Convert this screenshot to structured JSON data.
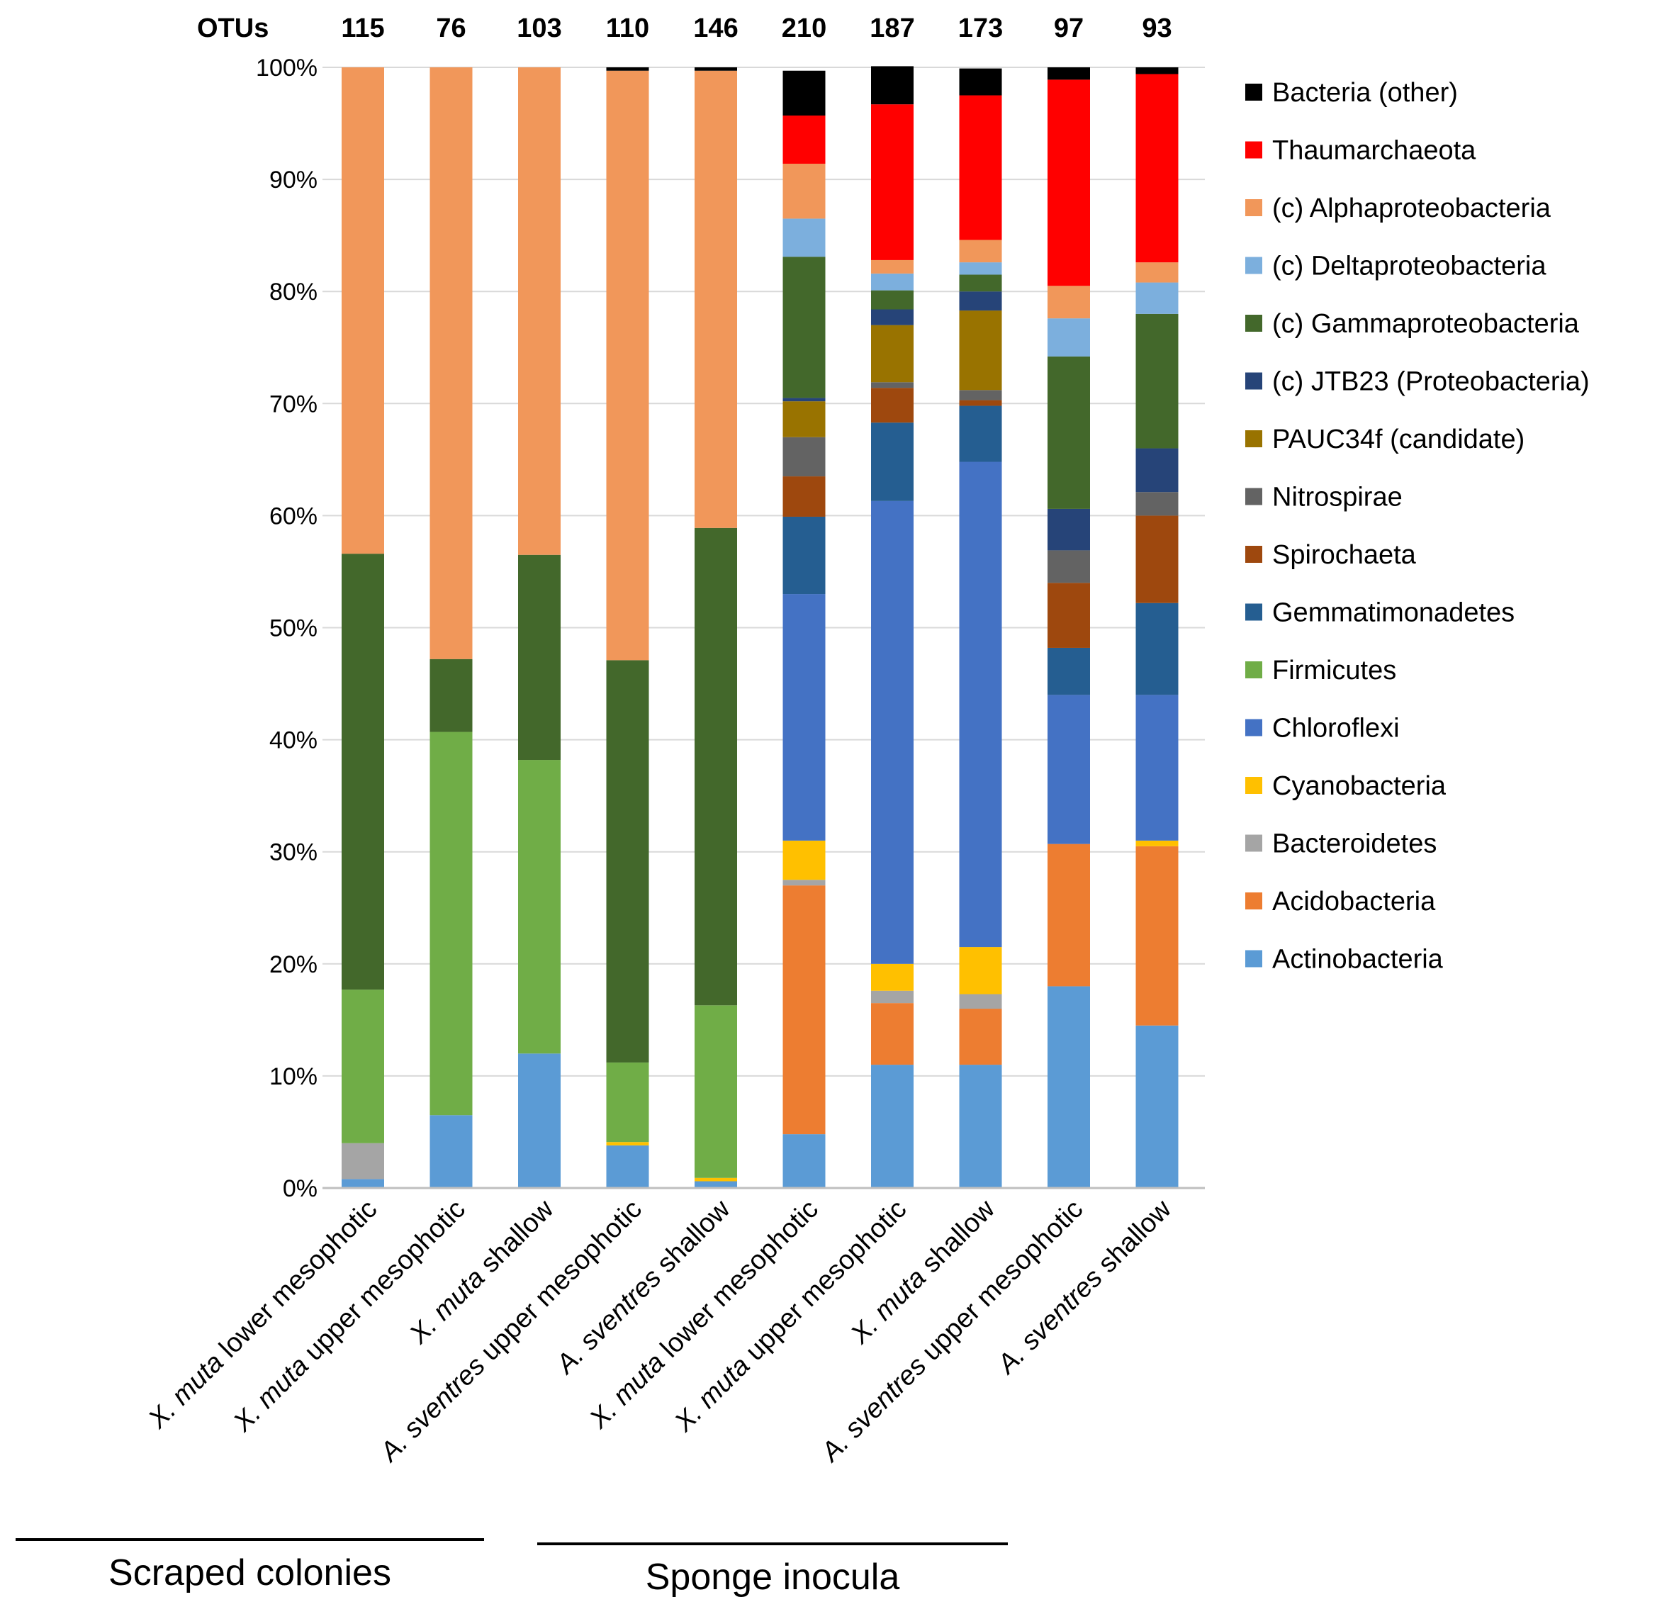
{
  "chart_data": {
    "type": "bar",
    "stacked": true,
    "title": "",
    "xlabel": "",
    "ylabel": "",
    "ylim": [
      0,
      100
    ],
    "y_ticks": [
      "0%",
      "10%",
      "20%",
      "30%",
      "40%",
      "50%",
      "60%",
      "70%",
      "80%",
      "90%",
      "100%"
    ],
    "otus_label": "OTUs",
    "otus": [
      "115",
      "76",
      "103",
      "110",
      "146",
      "210",
      "187",
      "173",
      "97",
      "93"
    ],
    "categories": [
      {
        "species": "X. muta",
        "rest": " lower mesophotic"
      },
      {
        "species": "X. muta",
        "rest": " upper mesophotic"
      },
      {
        "species": "X. muta",
        "rest": " shallow"
      },
      {
        "species": "A. sventres",
        "rest": " upper mesophotic"
      },
      {
        "species": "A. sventres",
        "rest": " shallow"
      },
      {
        "species": "X. muta",
        "rest": " lower mesophotic"
      },
      {
        "species": "X. muta",
        "rest": " upper mesophotic"
      },
      {
        "species": "X. muta",
        "rest": " shallow"
      },
      {
        "species": "A. sventres",
        "rest": " upper mesophotic"
      },
      {
        "species": "A. sventres",
        "rest": " shallow"
      }
    ],
    "groups": [
      {
        "label": "Scraped colonies",
        "from": 0,
        "to": 4
      },
      {
        "label": "Sponge inocula",
        "from": 5,
        "to": 9
      }
    ],
    "legend_position": "right",
    "series": [
      {
        "name": "Actinobacteria",
        "color": "#5B9BD5",
        "values": [
          0.8,
          6.5,
          12.0,
          3.8,
          0.6,
          4.8,
          11.0,
          11.0,
          18.0,
          14.5
        ]
      },
      {
        "name": "Acidobacteria",
        "color": "#ED7D31",
        "values": [
          0,
          0,
          0,
          0,
          0,
          22.2,
          5.5,
          5.0,
          12.7,
          16.0
        ]
      },
      {
        "name": "Bacteroidetes",
        "color": "#A5A5A5",
        "values": [
          3.2,
          0,
          0,
          0,
          0,
          0.5,
          1.1,
          1.3,
          0,
          0
        ]
      },
      {
        "name": "Cyanobacteria",
        "color": "#FFC000",
        "values": [
          0,
          0,
          0,
          0.3,
          0.3,
          3.5,
          2.4,
          4.2,
          0,
          0.5
        ]
      },
      {
        "name": "Chloroflexi",
        "color": "#4472C4",
        "values": [
          0,
          0,
          0,
          0,
          0,
          22.0,
          41.3,
          43.3,
          13.3,
          13.0
        ]
      },
      {
        "name": "Firmicutes",
        "color": "#70AD47",
        "values": [
          13.7,
          34.2,
          26.2,
          7.1,
          15.4,
          0,
          0,
          0,
          0,
          0
        ]
      },
      {
        "name": "Gemmatimonadetes",
        "color": "#255E91",
        "values": [
          0,
          0,
          0,
          0,
          0,
          6.9,
          7.0,
          5.0,
          4.2,
          8.2
        ]
      },
      {
        "name": "Spirochaeta",
        "color": "#9E480E",
        "values": [
          0,
          0,
          0,
          0,
          0,
          3.6,
          3.1,
          0.5,
          5.8,
          7.8
        ]
      },
      {
        "name": "Nitrospirae",
        "color": "#636363",
        "values": [
          0,
          0,
          0,
          0,
          0,
          3.5,
          0.5,
          0.9,
          2.9,
          2.1
        ]
      },
      {
        "name": "PAUC34f (candidate)",
        "color": "#997300",
        "values": [
          0,
          0,
          0,
          0,
          0,
          3.2,
          5.1,
          7.1,
          0,
          0
        ]
      },
      {
        "name": "(c) JTB23 (Proteobacteria)",
        "color": "#264478",
        "values": [
          0,
          0,
          0,
          0,
          0,
          0.3,
          1.4,
          1.7,
          3.7,
          3.9
        ]
      },
      {
        "name": "(c) Gammaproteobacteria",
        "color": "#43682B",
        "values": [
          38.9,
          6.5,
          18.3,
          35.9,
          42.6,
          12.6,
          1.7,
          1.5,
          13.6,
          12.0
        ]
      },
      {
        "name": "(c) Deltaproteobacteria",
        "color": "#7CAFDD",
        "values": [
          0,
          0,
          0,
          0,
          0,
          3.4,
          1.5,
          1.1,
          3.4,
          2.8
        ]
      },
      {
        "name": "(c) Alphaproteobacteria",
        "color": "#F1975A",
        "values": [
          43.4,
          52.8,
          43.5,
          52.6,
          40.8,
          4.9,
          1.2,
          2.0,
          2.9,
          1.8
        ]
      },
      {
        "name": "Thaumarchaeota",
        "color": "#FF0000",
        "values": [
          0,
          0,
          0,
          0,
          0,
          4.3,
          13.9,
          12.9,
          18.4,
          16.8
        ]
      },
      {
        "name": "Bacteria (other)",
        "color": "#000000",
        "values": [
          0,
          0,
          0,
          0.3,
          0.3,
          4.0,
          3.4,
          2.4,
          1.1,
          0.6
        ]
      }
    ]
  }
}
